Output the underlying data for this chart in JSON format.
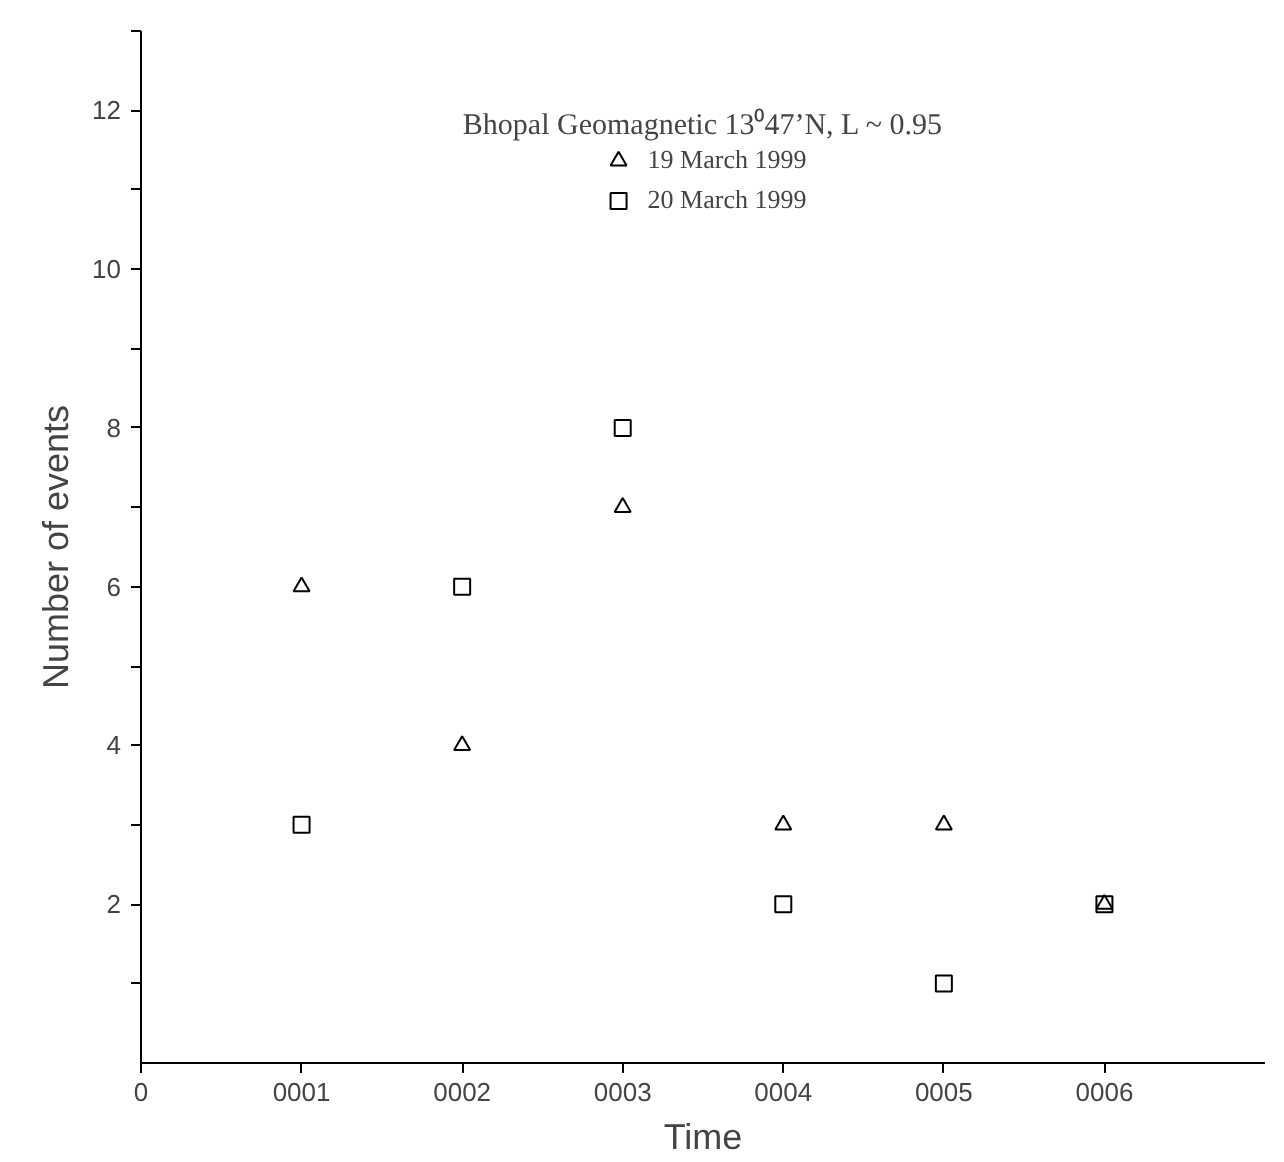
{
  "chart_data": {
    "type": "scatter",
    "title": "Bhopal Geomagnetic 13⁰47’N, L ~ 0.95",
    "xlabel": "Time",
    "ylabel": "Number of events",
    "x": [
      1,
      2,
      3,
      4,
      5,
      6
    ],
    "xlim": [
      0,
      7
    ],
    "xticks": [
      {
        "value": 0,
        "label": "0"
      },
      {
        "value": 1,
        "label": "0001"
      },
      {
        "value": 2,
        "label": "0002"
      },
      {
        "value": 3,
        "label": "0003"
      },
      {
        "value": 4,
        "label": "0004"
      },
      {
        "value": 5,
        "label": "0005"
      },
      {
        "value": 6,
        "label": "0006"
      }
    ],
    "ylim": [
      0,
      13
    ],
    "yticks": [
      {
        "value": 1,
        "label": null
      },
      2,
      {
        "value": 3,
        "label": null
      },
      4,
      {
        "value": 5,
        "label": null
      },
      6,
      {
        "value": 7,
        "label": null
      },
      8,
      {
        "value": 9,
        "label": null
      },
      10,
      {
        "value": 11,
        "label": null
      },
      12,
      {
        "value": 13,
        "label": null
      }
    ],
    "series": [
      {
        "name": "19 March 1999",
        "color": "#000000",
        "marker": "triangle",
        "values": [
          6,
          4,
          7,
          3,
          3,
          2
        ]
      },
      {
        "name": "20 March 1999",
        "color": "#000000",
        "marker": "square",
        "values": [
          3,
          6,
          8,
          2,
          1,
          2
        ]
      }
    ],
    "legend": "top",
    "grid": false
  }
}
